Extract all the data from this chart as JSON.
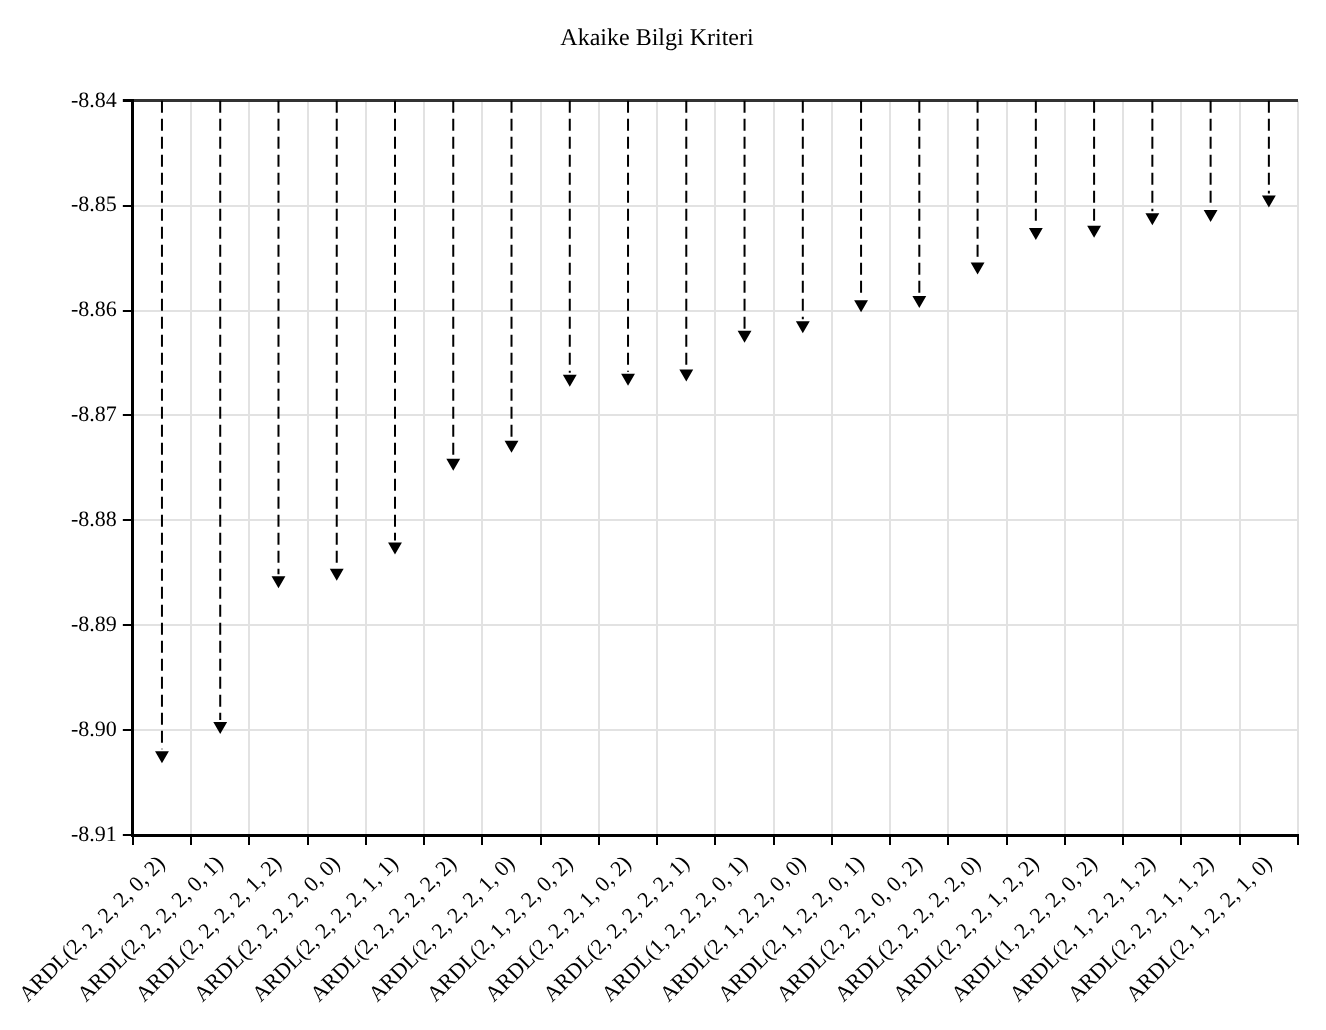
{
  "chart_data": {
    "type": "lollipop",
    "title": "Akaike Bilgi Kriteri",
    "categories": [
      "ARDL(2, 2, 2, 2, 0, 2)",
      "ARDL(2, 2, 2, 2, 0, 1)",
      "ARDL(2, 2, 2, 2, 1, 2)",
      "ARDL(2, 2, 2, 2, 0, 0)",
      "ARDL(2, 2, 2, 2, 1, 1)",
      "ARDL(2, 2, 2, 2, 2, 2)",
      "ARDL(2, 2, 2, 2, 1, 0)",
      "ARDL(2, 1, 2, 2, 0, 2)",
      "ARDL(2, 2, 2, 1, 0, 2)",
      "ARDL(2, 2, 2, 2, 2, 1)",
      "ARDL(1, 2, 2, 2, 0, 1)",
      "ARDL(2, 1, 2, 2, 0, 0)",
      "ARDL(2, 1, 2, 2, 0, 1)",
      "ARDL(2, 2, 2, 0, 0, 2)",
      "ARDL(2, 2, 2, 2, 2, 0)",
      "ARDL(2, 2, 2, 1, 2, 2)",
      "ARDL(1, 2, 2, 2, 0, 2)",
      "ARDL(2, 1, 2, 2, 1, 2)",
      "ARDL(2, 2, 2, 1, 1, 2)",
      "ARDL(2, 1, 2, 2, 1, 0)"
    ],
    "values": [
      -8.9024,
      -8.8996,
      -8.8857,
      -8.885,
      -8.8825,
      -8.8745,
      -8.8728,
      -8.8665,
      -8.8664,
      -8.866,
      -8.8623,
      -8.8614,
      -8.8594,
      -8.859,
      -8.8558,
      -8.8525,
      -8.8523,
      -8.8511,
      -8.8508,
      -8.8494
    ],
    "color": "#000000",
    "ylim": [
      -8.91,
      -8.84
    ],
    "yticks": [
      -8.91,
      {
        "value": -8.9,
        "label": "-8.90"
      },
      -8.89,
      -8.88,
      -8.87,
      -8.86,
      -8.85,
      -8.84
    ],
    "grid": true,
    "marker": "triangle",
    "line_style": "dashed"
  }
}
